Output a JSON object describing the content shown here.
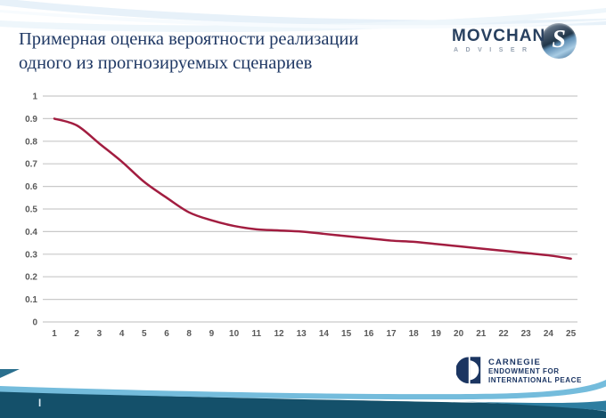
{
  "slide": {
    "title_line1": "Примерная оценка вероятности реализации",
    "title_line2": "одного из прогнозируемых сценариев",
    "page_marker": "I"
  },
  "logos": {
    "movchan": {
      "name": "MOVCHAN",
      "subtitle": "ADVISER",
      "emblem_letter": "S"
    },
    "carnegie": {
      "line1": "CARNEGIE",
      "line2": "ENDOWMENT FOR",
      "line3": "INTERNATIONAL PEACE"
    }
  },
  "chart_data": {
    "type": "line",
    "title": "",
    "xlabel": "",
    "ylabel": "",
    "categories": [
      "1",
      "2",
      "3",
      "4",
      "5",
      "6",
      "8",
      "9",
      "10",
      "11",
      "12",
      "13",
      "14",
      "15",
      "16",
      "17",
      "18",
      "19",
      "20",
      "21",
      "22",
      "23",
      "24",
      "25"
    ],
    "values": [
      0.9,
      0.87,
      0.79,
      0.71,
      0.62,
      0.55,
      0.485,
      0.45,
      0.425,
      0.41,
      0.405,
      0.4,
      0.39,
      0.38,
      0.37,
      0.36,
      0.355,
      0.345,
      0.335,
      0.325,
      0.315,
      0.305,
      0.295,
      0.28
    ],
    "y_tick_labels": [
      "1",
      "0.9",
      "0.8",
      "0.7",
      "0.6",
      "0.5",
      "0.4",
      "0.3",
      "0.2",
      "0.1",
      "0"
    ],
    "y_tick_values": [
      1,
      0.9,
      0.8,
      0.7,
      0.6,
      0.5,
      0.4,
      0.3,
      0.2,
      0.1,
      0
    ],
    "ylim": [
      0,
      1
    ],
    "grid": true,
    "legend": "none",
    "colors": {
      "line": "#a21d40",
      "grid": "#c9c9c9",
      "tick_text": "#595959"
    }
  },
  "theme": {
    "title_color": "#1f3864",
    "navy": "#1c3664",
    "footer_dark": "#14506a",
    "footer_light": "#74bcdc",
    "footer_accent": "#2d7da0"
  }
}
